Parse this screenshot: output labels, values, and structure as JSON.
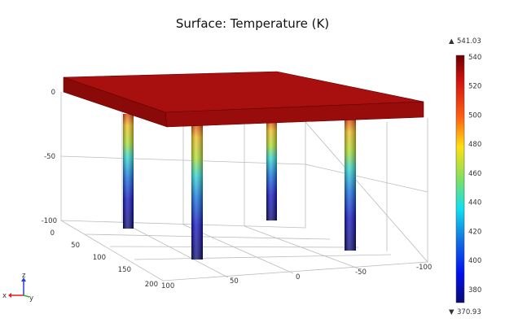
{
  "chart_data": {
    "type": "surface",
    "title": "Surface: Temperature (K)",
    "colormap": "rainbow",
    "colorbar": {
      "max_label": "541.03",
      "min_label": "370.93",
      "range": [
        370.93,
        541.03
      ],
      "ticks": [
        "540",
        "520",
        "500",
        "480",
        "460",
        "440",
        "420",
        "400",
        "380"
      ],
      "max_marker": "▲",
      "min_marker": "▼"
    },
    "z_axis": {
      "ticks": [
        "0",
        "-50",
        "-100"
      ]
    },
    "y_axis": {
      "ticks": [
        "0",
        "50",
        "100",
        "150",
        "200"
      ]
    },
    "x_axis": {
      "ticks": [
        "100",
        "50",
        "0",
        "-50",
        "-100"
      ]
    },
    "slab_color": "#9e0d0d",
    "column_gradient": [
      "#e8a020",
      "#e0e020",
      "#30d0c0",
      "#1060e0",
      "#1010a0",
      "#0a0a80"
    ],
    "triad": {
      "x": "x",
      "y": "y",
      "z": "z",
      "x_color": "#e02020",
      "y_color": "#20c020",
      "z_color": "#2040e0"
    }
  }
}
